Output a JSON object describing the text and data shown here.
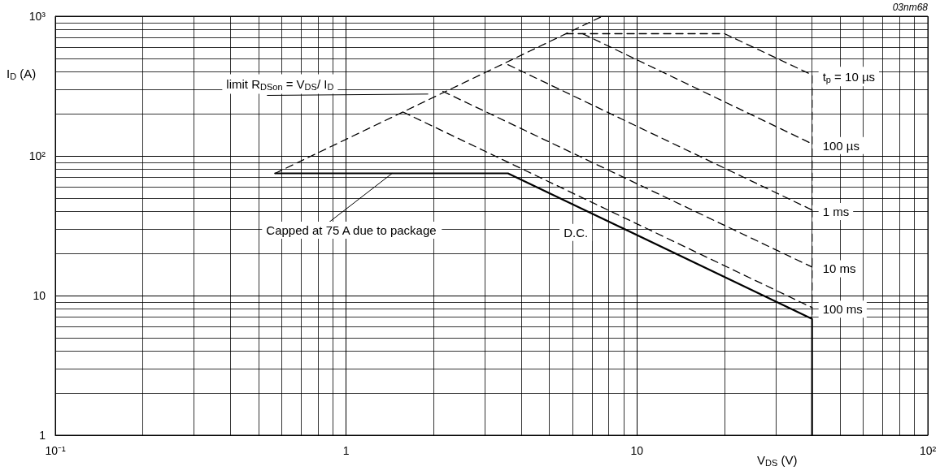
{
  "chart_data": {
    "type": "line",
    "xlabel": "V$_{DS}$ (V)",
    "ylabel": "I$_{D}$ (A)",
    "log": "xy",
    "grid": true,
    "legend": false,
    "marker": "none",
    "xlim": [
      0.1,
      100
    ],
    "ylim": [
      1,
      1000
    ],
    "xticks": [
      {
        "value": 0.1,
        "label": "10⁻¹"
      },
      1,
      10,
      {
        "value": 100,
        "label": "10²"
      }
    ],
    "yticks": [
      1,
      10,
      {
        "value": 100,
        "label": "10²"
      },
      {
        "value": 1000,
        "label": "10³"
      }
    ],
    "series": [
      {
        "name": "limit R$_{DSon}$ = V$_{DS}$/ I$_{D}$",
        "color": "#000000",
        "line_style": "dashed",
        "x": [
          0.57,
          7.6
        ],
        "values": [
          75,
          1000
        ]
      },
      {
        "name": "t$_{p}$ = 10 µs",
        "color": "#000000",
        "line_style": "dashed",
        "x": [
          5.7,
          20,
          40,
          40
        ],
        "values": [
          750,
          750,
          380,
          6.8
        ]
      },
      {
        "name": "100 µs",
        "color": "#000000",
        "line_style": "dashed",
        "x": [
          6.5,
          40
        ],
        "values": [
          750,
          122
        ]
      },
      {
        "name": "1 ms",
        "color": "#000000",
        "line_style": "dashed",
        "x": [
          3.6,
          40
        ],
        "values": [
          450,
          41
        ]
      },
      {
        "name": "10 ms",
        "color": "#000000",
        "line_style": "dashed",
        "x": [
          2.15,
          40
        ],
        "values": [
          290,
          16
        ]
      },
      {
        "name": "100 ms",
        "color": "#000000",
        "line_style": "dashed",
        "x": [
          1.57,
          40
        ],
        "values": [
          206,
          8.2
        ]
      },
      {
        "name": "D.C.",
        "color": "#000000",
        "line_style": "solid",
        "x": [
          0.57,
          3.6,
          40,
          40
        ],
        "values": [
          75,
          75,
          6.8,
          1
        ]
      }
    ],
    "annotations": [
      {
        "text": "Capped at 75 A due to package",
        "x": 1.44,
        "y": 75
      },
      "03nm68"
    ]
  }
}
